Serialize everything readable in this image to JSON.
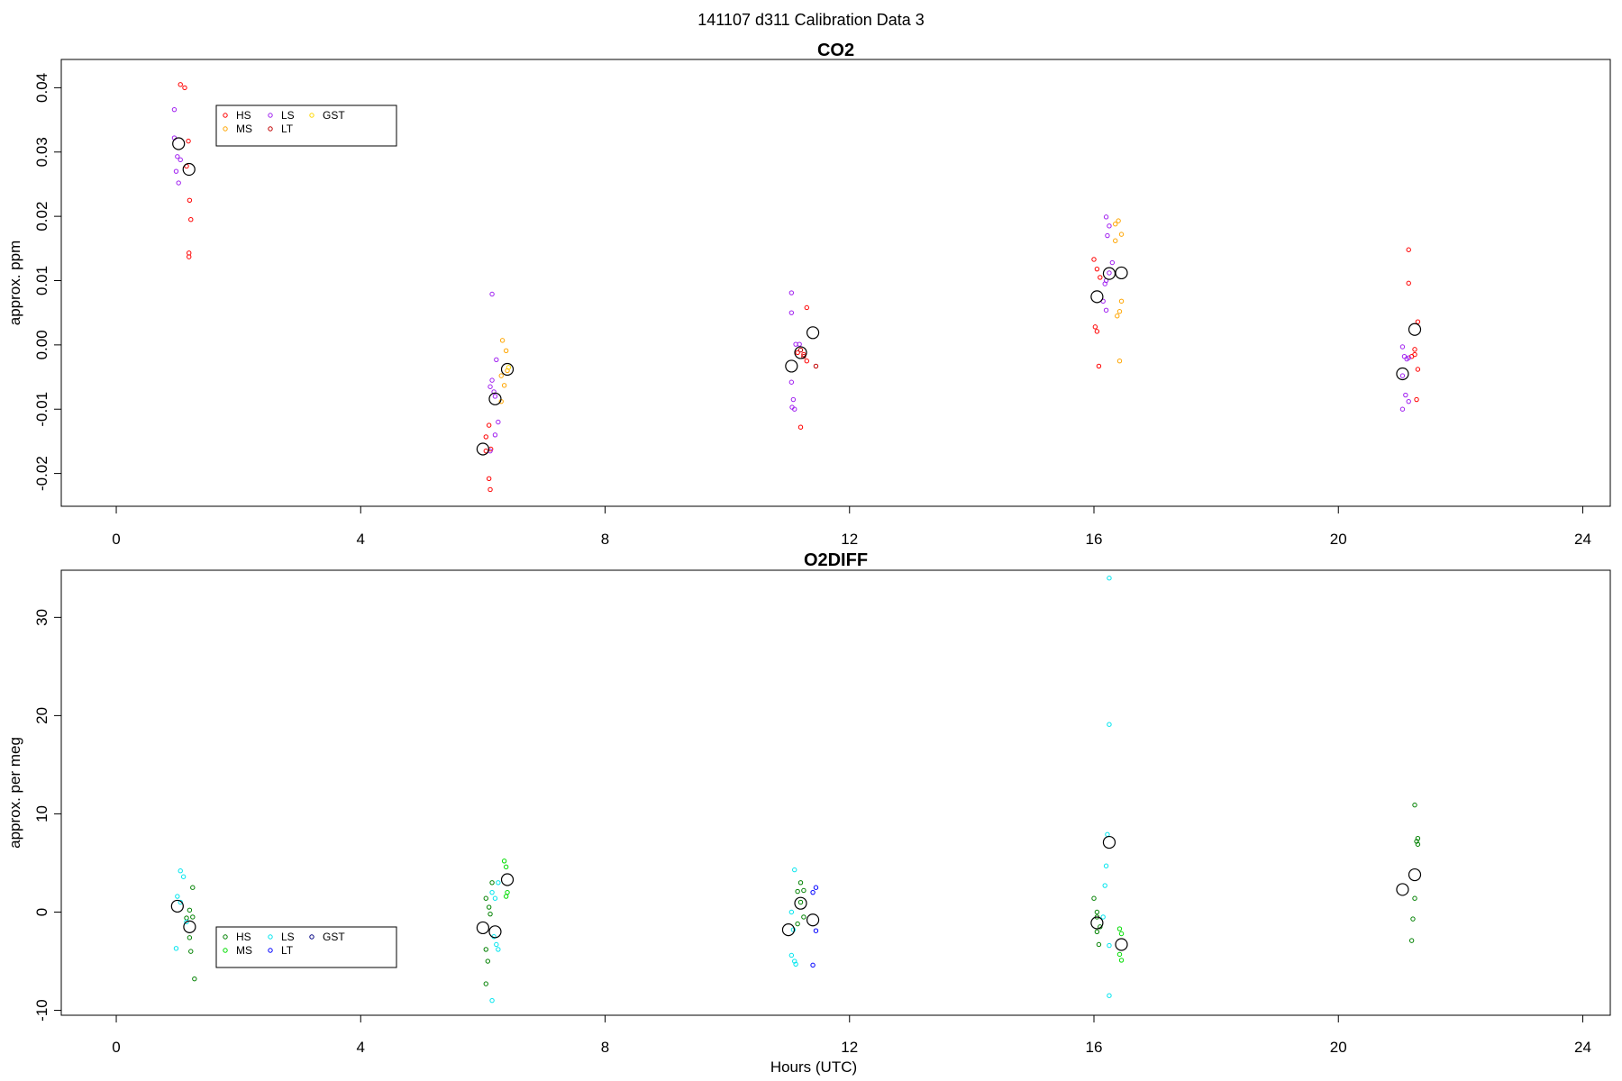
{
  "figure": {
    "title": "141107   d311   Calibration Data 3",
    "xlabel": "Hours (UTC)"
  },
  "chart_data": [
    {
      "type": "scatter",
      "title": "CO2",
      "xlabel": "",
      "ylabel": "approx. ppm",
      "xlim": [
        -0.9,
        24.45
      ],
      "ylim": [
        -0.0251,
        0.0444
      ],
      "xticks": [
        0,
        4,
        8,
        12,
        16,
        20,
        24
      ],
      "yticks": [
        -0.02,
        -0.01,
        0.0,
        0.01,
        0.02,
        0.03,
        0.04
      ],
      "ytick_labels": [
        "-0.02",
        "-0.01",
        "0.00",
        "0.01",
        "0.02",
        "0.03",
        "0.04"
      ],
      "grid": false,
      "legend": {
        "placement": "top-left",
        "entries": [
          {
            "name": "HS",
            "color": "#FF0000"
          },
          {
            "name": "MS",
            "color": "#FFA500"
          },
          {
            "name": "LS",
            "color": "#A020F0"
          },
          {
            "name": "LT",
            "color": "#C00000"
          },
          {
            "name": "GST",
            "color": "#FFD700"
          }
        ]
      },
      "series": [
        {
          "name": "HS",
          "color": "#FF0000",
          "points": [
            [
              1.05,
              0.0405
            ],
            [
              1.12,
              0.04
            ],
            [
              1.18,
              0.0317
            ],
            [
              1.15,
              0.0278
            ],
            [
              1.2,
              0.0225
            ],
            [
              1.22,
              0.0195
            ],
            [
              1.19,
              0.0143
            ],
            [
              1.19,
              0.0137
            ],
            [
              6.05,
              -0.0143
            ],
            [
              6.1,
              -0.0125
            ],
            [
              6.13,
              -0.0162
            ],
            [
              6.05,
              -0.0165
            ],
            [
              6.1,
              -0.0208
            ],
            [
              6.12,
              -0.0225
            ],
            [
              11.15,
              -0.0012
            ],
            [
              11.25,
              -0.0015
            ],
            [
              11.3,
              -0.0025
            ],
            [
              11.2,
              -0.0128
            ],
            [
              11.3,
              0.0058
            ],
            [
              16.0,
              0.0133
            ],
            [
              16.05,
              0.0118
            ],
            [
              16.1,
              0.0105
            ],
            [
              16.02,
              0.0028
            ],
            [
              16.05,
              0.0021
            ],
            [
              16.08,
              -0.0033
            ],
            [
              21.15,
              0.0148
            ],
            [
              21.15,
              0.0096
            ],
            [
              21.3,
              0.0036
            ],
            [
              21.25,
              -0.0007
            ],
            [
              21.2,
              -0.0018
            ],
            [
              21.3,
              -0.0038
            ],
            [
              21.28,
              -0.0085
            ],
            [
              21.25,
              -0.0015
            ]
          ]
        },
        {
          "name": "MS",
          "color": "#FFA500",
          "points": [
            [
              6.32,
              0.0007
            ],
            [
              6.38,
              -0.0009
            ],
            [
              6.3,
              -0.0048
            ],
            [
              6.35,
              -0.0063
            ],
            [
              6.3,
              -0.0088
            ],
            [
              6.4,
              -0.004
            ],
            [
              16.4,
              0.0193
            ],
            [
              16.35,
              0.0188
            ],
            [
              16.45,
              0.0172
            ],
            [
              16.35,
              0.0162
            ],
            [
              16.45,
              0.0068
            ],
            [
              16.42,
              0.0052
            ],
            [
              16.38,
              0.0045
            ],
            [
              16.42,
              -0.0025
            ]
          ]
        },
        {
          "name": "LS",
          "color": "#A020F0",
          "points": [
            [
              0.95,
              0.0366
            ],
            [
              0.95,
              0.0322
            ],
            [
              1.0,
              0.0293
            ],
            [
              1.05,
              0.0288
            ],
            [
              0.98,
              0.027
            ],
            [
              1.02,
              0.0252
            ],
            [
              6.15,
              0.0079
            ],
            [
              6.22,
              -0.0023
            ],
            [
              6.15,
              -0.0055
            ],
            [
              6.12,
              -0.0065
            ],
            [
              6.18,
              -0.0073
            ],
            [
              6.2,
              -0.008
            ],
            [
              6.25,
              -0.012
            ],
            [
              6.2,
              -0.014
            ],
            [
              6.12,
              -0.0165
            ],
            [
              11.05,
              0.0081
            ],
            [
              11.05,
              0.005
            ],
            [
              11.12,
              0.0001
            ],
            [
              11.18,
              0.0001
            ],
            [
              11.05,
              -0.0058
            ],
            [
              11.08,
              -0.0085
            ],
            [
              11.06,
              -0.0097
            ],
            [
              11.1,
              -0.01
            ],
            [
              16.2,
              0.0199
            ],
            [
              16.25,
              0.0185
            ],
            [
              16.22,
              0.017
            ],
            [
              16.3,
              0.0128
            ],
            [
              16.25,
              0.0112
            ],
            [
              16.2,
              0.01
            ],
            [
              16.18,
              0.0095
            ],
            [
              16.15,
              0.0068
            ],
            [
              16.2,
              0.0054
            ],
            [
              21.05,
              -0.0003
            ],
            [
              21.15,
              -0.002
            ],
            [
              21.08,
              -0.0018
            ],
            [
              21.12,
              -0.0022
            ],
            [
              21.05,
              -0.0048
            ],
            [
              21.1,
              -0.0078
            ],
            [
              21.15,
              -0.0088
            ],
            [
              21.05,
              -0.01
            ]
          ]
        },
        {
          "name": "LT",
          "color": "#C00000",
          "points": [
            [
              11.2,
              -0.0008
            ],
            [
              11.25,
              -0.0018
            ],
            [
              11.45,
              -0.0033
            ]
          ]
        },
        {
          "name": "GST",
          "color": "#FFD700",
          "points": [
            [
              6.42,
              -0.0035
            ]
          ]
        }
      ],
      "means": {
        "color": "#000000",
        "points": [
          [
            1.02,
            0.0313
          ],
          [
            1.19,
            0.0273
          ],
          [
            6.0,
            -0.0162
          ],
          [
            6.2,
            -0.0084
          ],
          [
            6.4,
            -0.0038
          ],
          [
            11.05,
            -0.0033
          ],
          [
            11.2,
            -0.0012
          ],
          [
            11.4,
            0.0019
          ],
          [
            16.05,
            0.0075
          ],
          [
            16.25,
            0.0111
          ],
          [
            16.45,
            0.0112
          ],
          [
            21.05,
            -0.0045
          ],
          [
            21.25,
            0.0024
          ]
        ]
      }
    },
    {
      "type": "scatter",
      "title": "O2DIFF",
      "xlabel": "Hours (UTC)",
      "ylabel": "approx. per meg",
      "xlim": [
        -0.9,
        24.45
      ],
      "ylim": [
        -10.5,
        34.8
      ],
      "xticks": [
        0,
        4,
        8,
        12,
        16,
        20,
        24
      ],
      "yticks": [
        -10,
        0,
        10,
        20,
        30
      ],
      "ytick_labels": [
        "-10",
        "0",
        "10",
        "20",
        "30"
      ],
      "grid": false,
      "legend": {
        "placement": "bottom-left",
        "entries": [
          {
            "name": "HS",
            "color": "#008000"
          },
          {
            "name": "MS",
            "color": "#00DD00"
          },
          {
            "name": "LS",
            "color": "#00E5EE"
          },
          {
            "name": "LT",
            "color": "#0000FF"
          },
          {
            "name": "GST",
            "color": "#000080"
          }
        ]
      },
      "series": [
        {
          "name": "HS",
          "color": "#008000",
          "points": [
            [
              1.25,
              2.5
            ],
            [
              1.2,
              0.2
            ],
            [
              1.25,
              -0.5
            ],
            [
              1.15,
              -0.6
            ],
            [
              1.2,
              -2.6
            ],
            [
              1.22,
              -4.0
            ],
            [
              1.28,
              -6.8
            ],
            [
              6.05,
              1.4
            ],
            [
              6.1,
              0.5
            ],
            [
              6.12,
              -0.2
            ],
            [
              6.15,
              3.0
            ],
            [
              6.05,
              -3.8
            ],
            [
              6.08,
              -5.0
            ],
            [
              6.05,
              -7.3
            ],
            [
              11.2,
              3.0
            ],
            [
              11.25,
              2.2
            ],
            [
              11.15,
              2.1
            ],
            [
              11.2,
              1.0
            ],
            [
              11.25,
              -0.5
            ],
            [
              11.15,
              -1.2
            ],
            [
              16.0,
              1.4
            ],
            [
              16.05,
              0.0
            ],
            [
              16.05,
              -0.5
            ],
            [
              16.1,
              -1.5
            ],
            [
              16.05,
              -2.0
            ],
            [
              16.08,
              -3.3
            ],
            [
              21.25,
              10.9
            ],
            [
              21.3,
              7.5
            ],
            [
              21.28,
              7.2
            ],
            [
              21.3,
              6.9
            ],
            [
              21.25,
              1.4
            ],
            [
              21.22,
              -0.7
            ],
            [
              21.2,
              -2.9
            ]
          ]
        },
        {
          "name": "MS",
          "color": "#00DD00",
          "points": [
            [
              6.35,
              5.2
            ],
            [
              6.38,
              4.6
            ],
            [
              6.4,
              2.0
            ],
            [
              6.38,
              1.6
            ],
            [
              16.42,
              -1.7
            ],
            [
              16.45,
              -2.2
            ],
            [
              16.42,
              -4.3
            ],
            [
              16.45,
              -4.9
            ]
          ]
        },
        {
          "name": "LS",
          "color": "#00E5EE",
          "points": [
            [
              1.05,
              4.2
            ],
            [
              1.1,
              3.6
            ],
            [
              1.0,
              1.6
            ],
            [
              1.05,
              1.0
            ],
            [
              1.15,
              -1.0
            ],
            [
              0.98,
              -3.7
            ],
            [
              6.2,
              1.4
            ],
            [
              6.25,
              3.0
            ],
            [
              6.15,
              2.0
            ],
            [
              6.18,
              -2.5
            ],
            [
              6.22,
              -3.3
            ],
            [
              6.25,
              -3.8
            ],
            [
              6.15,
              -9.0
            ],
            [
              11.05,
              0.0
            ],
            [
              11.1,
              4.3
            ],
            [
              11.08,
              -1.8
            ],
            [
              11.05,
              -4.4
            ],
            [
              11.1,
              -5.0
            ],
            [
              11.12,
              -5.3
            ],
            [
              16.25,
              34.0
            ],
            [
              16.25,
              19.1
            ],
            [
              16.22,
              7.9
            ],
            [
              16.2,
              4.7
            ],
            [
              16.18,
              2.7
            ],
            [
              16.15,
              -0.5
            ],
            [
              16.25,
              -3.4
            ],
            [
              16.25,
              -8.5
            ]
          ]
        },
        {
          "name": "LT",
          "color": "#0000FF",
          "points": [
            [
              11.45,
              2.5
            ],
            [
              11.4,
              2.0
            ],
            [
              11.45,
              -1.9
            ],
            [
              11.4,
              -5.4
            ]
          ]
        },
        {
          "name": "GST",
          "color": "#000080",
          "points": []
        }
      ],
      "means": {
        "color": "#000000",
        "points": [
          [
            1.0,
            0.6
          ],
          [
            1.2,
            -1.5
          ],
          [
            6.0,
            -1.6
          ],
          [
            6.2,
            -2.0
          ],
          [
            6.4,
            3.3
          ],
          [
            11.0,
            -1.8
          ],
          [
            11.2,
            0.9
          ],
          [
            11.4,
            -0.8
          ],
          [
            16.05,
            -1.1
          ],
          [
            16.25,
            7.1
          ],
          [
            16.45,
            -3.3
          ],
          [
            21.05,
            2.3
          ],
          [
            21.25,
            3.8
          ]
        ]
      }
    }
  ]
}
